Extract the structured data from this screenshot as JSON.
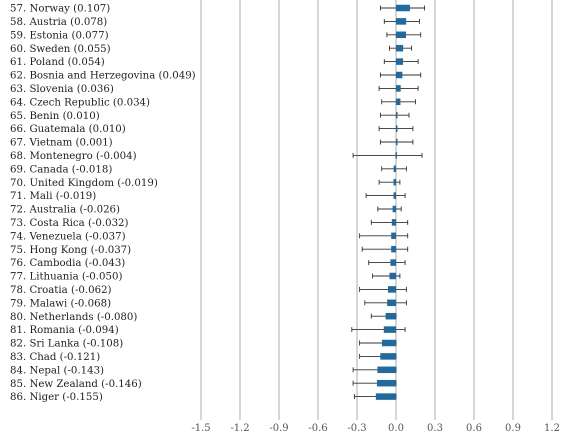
{
  "chart_data": {
    "type": "bar",
    "orientation": "horizontal",
    "title": "",
    "xlabel": "",
    "ylabel": "",
    "xlim": [
      -1.6,
      1.3
    ],
    "x_ticks": [
      -1.5,
      -1.2,
      -0.9,
      -0.6,
      -0.3,
      0.0,
      0.3,
      0.6,
      0.9,
      1.2
    ],
    "x_tick_labels": [
      "-1.5",
      "-1.2",
      "-0.9",
      "-0.6",
      "-0.3",
      "0.0",
      "0.3",
      "0.6",
      "0.9",
      "1.2"
    ],
    "grid": "vertical",
    "bar_color": "#1f6aa0",
    "rows": [
      {
        "label": "57.  Norway (0.107)",
        "value": 0.107,
        "ci": [
          -0.12,
          0.22
        ]
      },
      {
        "label": "58.  Austria (0.078)",
        "value": 0.078,
        "ci": [
          -0.09,
          0.18
        ]
      },
      {
        "label": "59.  Estonia (0.077)",
        "value": 0.077,
        "ci": [
          -0.07,
          0.19
        ]
      },
      {
        "label": "60.  Sweden (0.055)",
        "value": 0.055,
        "ci": [
          -0.05,
          0.12
        ]
      },
      {
        "label": "61.  Poland (0.054)",
        "value": 0.054,
        "ci": [
          -0.09,
          0.17
        ]
      },
      {
        "label": "62.  Bosnia and Herzegovina (0.049)",
        "value": 0.049,
        "ci": [
          -0.12,
          0.19
        ]
      },
      {
        "label": "63.  Slovenia (0.036)",
        "value": 0.036,
        "ci": [
          -0.13,
          0.17
        ]
      },
      {
        "label": "64.  Czech Republic (0.034)",
        "value": 0.034,
        "ci": [
          -0.11,
          0.15
        ]
      },
      {
        "label": "65.  Benin (0.010)",
        "value": 0.01,
        "ci": [
          -0.12,
          0.1
        ]
      },
      {
        "label": "66.  Guatemala (0.010)",
        "value": 0.01,
        "ci": [
          -0.13,
          0.13
        ]
      },
      {
        "label": "67.  Vietnam (0.001)",
        "value": 0.001,
        "ci": [
          -0.12,
          0.13
        ]
      },
      {
        "label": "68.  Montenegro (-0.004)",
        "value": -0.004,
        "ci": [
          -0.33,
          0.2
        ]
      },
      {
        "label": "69.  Canada (-0.018)",
        "value": -0.018,
        "ci": [
          -0.11,
          0.08
        ]
      },
      {
        "label": "70.  United Kingdom (-0.019)",
        "value": -0.019,
        "ci": [
          -0.13,
          0.03
        ]
      },
      {
        "label": "71.  Mali (-0.019)",
        "value": -0.019,
        "ci": [
          -0.23,
          0.07
        ]
      },
      {
        "label": "72.  Australia (-0.026)",
        "value": -0.026,
        "ci": [
          -0.14,
          0.04
        ]
      },
      {
        "label": "73.  Costa Rica (-0.032)",
        "value": -0.032,
        "ci": [
          -0.19,
          0.09
        ]
      },
      {
        "label": "74.  Venezuela (-0.037)",
        "value": -0.037,
        "ci": [
          -0.28,
          0.09
        ]
      },
      {
        "label": "75.  Hong Kong (-0.037)",
        "value": -0.037,
        "ci": [
          -0.26,
          0.09
        ]
      },
      {
        "label": "76.  Cambodia (-0.043)",
        "value": -0.043,
        "ci": [
          -0.21,
          0.07
        ]
      },
      {
        "label": "77.  Lithuania (-0.050)",
        "value": -0.05,
        "ci": [
          -0.18,
          0.03
        ]
      },
      {
        "label": "78.  Croatia (-0.062)",
        "value": -0.062,
        "ci": [
          -0.28,
          0.08
        ]
      },
      {
        "label": "79.  Malawi (-0.068)",
        "value": -0.068,
        "ci": [
          -0.24,
          0.08
        ]
      },
      {
        "label": "80.  Netherlands (-0.080)",
        "value": -0.08,
        "ci": [
          -0.19,
          0.0
        ]
      },
      {
        "label": "81.  Romania (-0.094)",
        "value": -0.094,
        "ci": [
          -0.34,
          0.07
        ]
      },
      {
        "label": "82.  Sri Lanka (-0.108)",
        "value": -0.108,
        "ci": [
          -0.28,
          0.0
        ]
      },
      {
        "label": "83.  Chad (-0.121)",
        "value": -0.121,
        "ci": [
          -0.28,
          0.0
        ]
      },
      {
        "label": "84.  Nepal (-0.143)",
        "value": -0.143,
        "ci": [
          -0.33,
          0.0
        ]
      },
      {
        "label": "85.  New Zealand (-0.146)",
        "value": -0.146,
        "ci": [
          -0.33,
          0.0
        ]
      },
      {
        "label": "86.  Niger (-0.155)",
        "value": -0.155,
        "ci": [
          -0.32,
          0.0
        ]
      }
    ]
  }
}
